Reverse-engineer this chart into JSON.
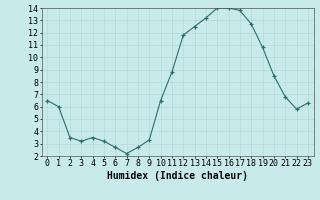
{
  "x": [
    0,
    1,
    2,
    3,
    4,
    5,
    6,
    7,
    8,
    9,
    10,
    11,
    12,
    13,
    14,
    15,
    16,
    17,
    18,
    19,
    20,
    21,
    22,
    23
  ],
  "y": [
    6.5,
    6.0,
    3.5,
    3.2,
    3.5,
    3.2,
    2.7,
    2.2,
    2.7,
    3.3,
    6.5,
    8.8,
    11.8,
    12.5,
    13.2,
    14.0,
    14.0,
    13.8,
    12.7,
    10.8,
    8.5,
    6.8,
    5.8,
    6.3
  ],
  "xlabel": "Humidex (Indice chaleur)",
  "xlim": [
    -0.5,
    23.5
  ],
  "ylim": [
    2,
    14
  ],
  "yticks": [
    2,
    3,
    4,
    5,
    6,
    7,
    8,
    9,
    10,
    11,
    12,
    13,
    14
  ],
  "xticks": [
    0,
    1,
    2,
    3,
    4,
    5,
    6,
    7,
    8,
    9,
    10,
    11,
    12,
    13,
    14,
    15,
    16,
    17,
    18,
    19,
    20,
    21,
    22,
    23
  ],
  "line_color": "#2d6e6e",
  "bg_color": "#c8eaea",
  "grid_color": "#b0d8d8",
  "xlabel_fontsize": 7,
  "tick_fontsize": 6
}
